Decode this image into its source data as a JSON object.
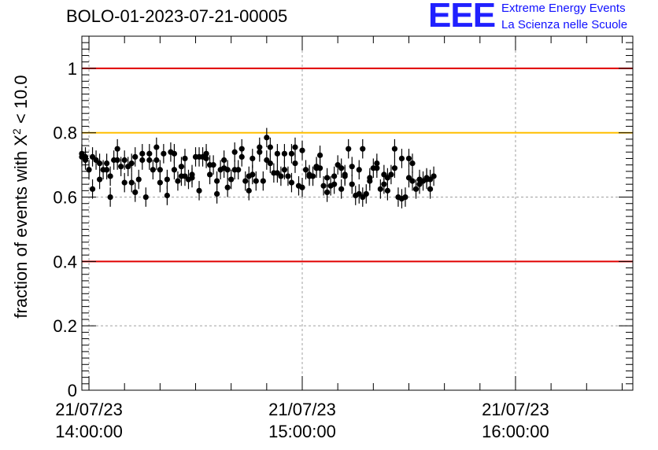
{
  "chart_data": {
    "type": "scatter",
    "title": "BOLO-01-2023-07-21-00005",
    "ylabel_main": "fraction of events with X",
    "ylabel_sup": "2",
    "ylabel_tail": " < 10.0",
    "ylim": [
      0,
      1.1
    ],
    "yticks": [
      {
        "value": 0,
        "label": "0"
      },
      {
        "value": 0.2,
        "label": "0.2"
      },
      {
        "value": 0.4,
        "label": "0.4"
      },
      {
        "value": 0.6,
        "label": "0.6"
      },
      {
        "value": 0.8,
        "label": "0.8"
      },
      {
        "value": 1,
        "label": "1"
      }
    ],
    "xlim": [
      "2023-07-21 13:58",
      "2023-07-21 16:33"
    ],
    "xticks": [
      {
        "time": "2023-07-21 14:00",
        "date_label": "21/07/23",
        "time_label": "14:00:00"
      },
      {
        "time": "2023-07-21 15:00",
        "date_label": "21/07/23",
        "time_label": "15:00:00"
      },
      {
        "time": "2023-07-21 16:00",
        "date_label": "21/07/23",
        "time_label": "16:00:00"
      }
    ],
    "grid": true,
    "reference_lines": [
      {
        "y": 1.0,
        "color": "#e00000"
      },
      {
        "y": 0.8,
        "color": "#ffbf00"
      },
      {
        "y": 0.4,
        "color": "#e00000"
      }
    ],
    "series": [
      {
        "marker_color": "#000000",
        "error": 0.03,
        "points": [
          [
            "2023-07-21 13:58",
            0.725
          ],
          [
            "2023-07-21 13:58",
            0.735
          ],
          [
            "2023-07-21 13:59",
            0.725
          ],
          [
            "2023-07-21 13:59",
            0.715
          ],
          [
            "2023-07-21 14:00",
            0.685
          ],
          [
            "2023-07-21 14:01",
            0.625
          ],
          [
            "2023-07-21 14:01",
            0.725
          ],
          [
            "2023-07-21 14:02",
            0.715
          ],
          [
            "2023-07-21 14:03",
            0.705
          ],
          [
            "2023-07-21 14:03",
            0.655
          ],
          [
            "2023-07-21 14:04",
            0.685
          ],
          [
            "2023-07-21 14:05",
            0.685
          ],
          [
            "2023-07-21 14:05",
            0.705
          ],
          [
            "2023-07-21 14:06",
            0.6
          ],
          [
            "2023-07-21 14:06",
            0.665
          ],
          [
            "2023-07-21 14:07",
            0.715
          ],
          [
            "2023-07-21 14:08",
            0.75
          ],
          [
            "2023-07-21 14:08",
            0.715
          ],
          [
            "2023-07-21 14:09",
            0.695
          ],
          [
            "2023-07-21 14:10",
            0.715
          ],
          [
            "2023-07-21 14:10",
            0.645
          ],
          [
            "2023-07-21 14:11",
            0.695
          ],
          [
            "2023-07-21 14:12",
            0.645
          ],
          [
            "2023-07-21 14:12",
            0.705
          ],
          [
            "2023-07-21 14:13",
            0.725
          ],
          [
            "2023-07-21 14:13",
            0.615
          ],
          [
            "2023-07-21 14:14",
            0.655
          ],
          [
            "2023-07-21 14:15",
            0.735
          ],
          [
            "2023-07-21 14:15",
            0.715
          ],
          [
            "2023-07-21 14:16",
            0.6
          ],
          [
            "2023-07-21 14:17",
            0.715
          ],
          [
            "2023-07-21 14:17",
            0.735
          ],
          [
            "2023-07-21 14:18",
            0.685
          ],
          [
            "2023-07-21 14:19",
            0.715
          ],
          [
            "2023-07-21 14:19",
            0.755
          ],
          [
            "2023-07-21 14:20",
            0.645
          ],
          [
            "2023-07-21 14:20",
            0.685
          ],
          [
            "2023-07-21 14:21",
            0.735
          ],
          [
            "2023-07-21 14:22",
            0.605
          ],
          [
            "2023-07-21 14:22",
            0.655
          ],
          [
            "2023-07-21 14:23",
            0.74
          ],
          [
            "2023-07-21 14:24",
            0.685
          ],
          [
            "2023-07-21 14:24",
            0.735
          ],
          [
            "2023-07-21 14:25",
            0.65
          ],
          [
            "2023-07-21 14:26",
            0.665
          ],
          [
            "2023-07-21 14:26",
            0.695
          ],
          [
            "2023-07-21 14:27",
            0.72
          ],
          [
            "2023-07-21 14:27",
            0.665
          ],
          [
            "2023-07-21 14:28",
            0.655
          ],
          [
            "2023-07-21 14:29",
            0.67
          ],
          [
            "2023-07-21 14:29",
            0.66
          ],
          [
            "2023-07-21 14:30",
            0.725
          ],
          [
            "2023-07-21 14:31",
            0.62
          ],
          [
            "2023-07-21 14:31",
            0.725
          ],
          [
            "2023-07-21 14:32",
            0.725
          ],
          [
            "2023-07-21 14:33",
            0.735
          ],
          [
            "2023-07-21 14:33",
            0.72
          ],
          [
            "2023-07-21 14:34",
            0.67
          ],
          [
            "2023-07-21 14:34",
            0.7
          ],
          [
            "2023-07-21 14:35",
            0.7
          ],
          [
            "2023-07-21 14:36",
            0.65
          ],
          [
            "2023-07-21 14:36",
            0.61
          ],
          [
            "2023-07-21 14:37",
            0.685
          ],
          [
            "2023-07-21 14:38",
            0.715
          ],
          [
            "2023-07-21 14:38",
            0.69
          ],
          [
            "2023-07-21 14:39",
            0.685
          ],
          [
            "2023-07-21 14:39",
            0.63
          ],
          [
            "2023-07-21 14:40",
            0.655
          ],
          [
            "2023-07-21 14:41",
            0.685
          ],
          [
            "2023-07-21 14:41",
            0.74
          ],
          [
            "2023-07-21 14:42",
            0.685
          ],
          [
            "2023-07-21 14:43",
            0.725
          ],
          [
            "2023-07-21 14:43",
            0.75
          ],
          [
            "2023-07-21 14:44",
            0.65
          ],
          [
            "2023-07-21 14:45",
            0.62
          ],
          [
            "2023-07-21 14:45",
            0.665
          ],
          [
            "2023-07-21 14:46",
            0.67
          ],
          [
            "2023-07-21 14:46",
            0.72
          ],
          [
            "2023-07-21 14:47",
            0.65
          ],
          [
            "2023-07-21 14:48",
            0.74
          ],
          [
            "2023-07-21 14:48",
            0.755
          ],
          [
            "2023-07-21 14:49",
            0.65
          ],
          [
            "2023-07-21 14:50",
            0.715
          ],
          [
            "2023-07-21 14:50",
            0.785
          ],
          [
            "2023-07-21 14:51",
            0.705
          ],
          [
            "2023-07-21 14:51",
            0.755
          ],
          [
            "2023-07-21 14:52",
            0.675
          ],
          [
            "2023-07-21 14:53",
            0.675
          ],
          [
            "2023-07-21 14:53",
            0.735
          ],
          [
            "2023-07-21 14:54",
            0.665
          ],
          [
            "2023-07-21 14:55",
            0.735
          ],
          [
            "2023-07-21 14:55",
            0.685
          ],
          [
            "2023-07-21 14:56",
            0.665
          ],
          [
            "2023-07-21 14:57",
            0.645
          ],
          [
            "2023-07-21 14:57",
            0.735
          ],
          [
            "2023-07-21 14:58",
            0.755
          ],
          [
            "2023-07-21 14:58",
            0.705
          ],
          [
            "2023-07-21 14:59",
            0.635
          ],
          [
            "2023-07-21 15:00",
            0.745
          ],
          [
            "2023-07-21 15:00",
            0.63
          ],
          [
            "2023-07-21 15:01",
            0.685
          ],
          [
            "2023-07-21 15:02",
            0.665
          ],
          [
            "2023-07-21 15:02",
            0.67
          ],
          [
            "2023-07-21 15:03",
            0.665
          ],
          [
            "2023-07-21 15:04",
            0.695
          ],
          [
            "2023-07-21 15:04",
            0.69
          ],
          [
            "2023-07-21 15:05",
            0.73
          ],
          [
            "2023-07-21 15:05",
            0.69
          ],
          [
            "2023-07-21 15:06",
            0.635
          ],
          [
            "2023-07-21 15:07",
            0.615
          ],
          [
            "2023-07-21 15:07",
            0.66
          ],
          [
            "2023-07-21 15:08",
            0.635
          ],
          [
            "2023-07-21 15:09",
            0.64
          ],
          [
            "2023-07-21 15:09",
            0.665
          ],
          [
            "2023-07-21 15:10",
            0.7
          ],
          [
            "2023-07-21 15:11",
            0.69
          ],
          [
            "2023-07-21 15:11",
            0.625
          ],
          [
            "2023-07-21 15:12",
            0.665
          ],
          [
            "2023-07-21 15:12",
            0.67
          ],
          [
            "2023-07-21 15:13",
            0.75
          ],
          [
            "2023-07-21 15:14",
            0.64
          ],
          [
            "2023-07-21 15:14",
            0.695
          ],
          [
            "2023-07-21 15:15",
            0.605
          ],
          [
            "2023-07-21 15:16",
            0.61
          ],
          [
            "2023-07-21 15:16",
            0.685
          ],
          [
            "2023-07-21 15:17",
            0.75
          ],
          [
            "2023-07-21 15:17",
            0.6
          ],
          [
            "2023-07-21 15:18",
            0.61
          ],
          [
            "2023-07-21 15:19",
            0.65
          ],
          [
            "2023-07-21 15:19",
            0.66
          ],
          [
            "2023-07-21 15:20",
            0.69
          ],
          [
            "2023-07-21 15:21",
            0.705
          ],
          [
            "2023-07-21 15:21",
            0.69
          ],
          [
            "2023-07-21 15:22",
            0.625
          ],
          [
            "2023-07-21 15:23",
            0.64
          ],
          [
            "2023-07-21 15:23",
            0.67
          ],
          [
            "2023-07-21 15:24",
            0.66
          ],
          [
            "2023-07-21 15:24",
            0.62
          ],
          [
            "2023-07-21 15:25",
            0.67
          ],
          [
            "2023-07-21 15:26",
            0.69
          ],
          [
            "2023-07-21 15:26",
            0.75
          ],
          [
            "2023-07-21 15:27",
            0.6
          ],
          [
            "2023-07-21 15:28",
            0.595
          ],
          [
            "2023-07-21 15:28",
            0.72
          ],
          [
            "2023-07-21 15:29",
            0.6
          ],
          [
            "2023-07-21 15:30",
            0.72
          ],
          [
            "2023-07-21 15:30",
            0.66
          ],
          [
            "2023-07-21 15:31",
            0.65
          ],
          [
            "2023-07-21 15:31",
            0.705
          ],
          [
            "2023-07-21 15:32",
            0.625
          ],
          [
            "2023-07-21 15:33",
            0.655
          ],
          [
            "2023-07-21 15:33",
            0.64
          ],
          [
            "2023-07-21 15:34",
            0.65
          ],
          [
            "2023-07-21 15:35",
            0.66
          ],
          [
            "2023-07-21 15:35",
            0.655
          ],
          [
            "2023-07-21 15:36",
            0.625
          ],
          [
            "2023-07-21 15:36",
            0.655
          ],
          [
            "2023-07-21 15:37",
            0.665
          ]
        ]
      }
    ]
  },
  "logo": {
    "mark": "EEE",
    "line1": "Extreme Energy Events",
    "line2": "La Scienza nelle Scuole"
  }
}
